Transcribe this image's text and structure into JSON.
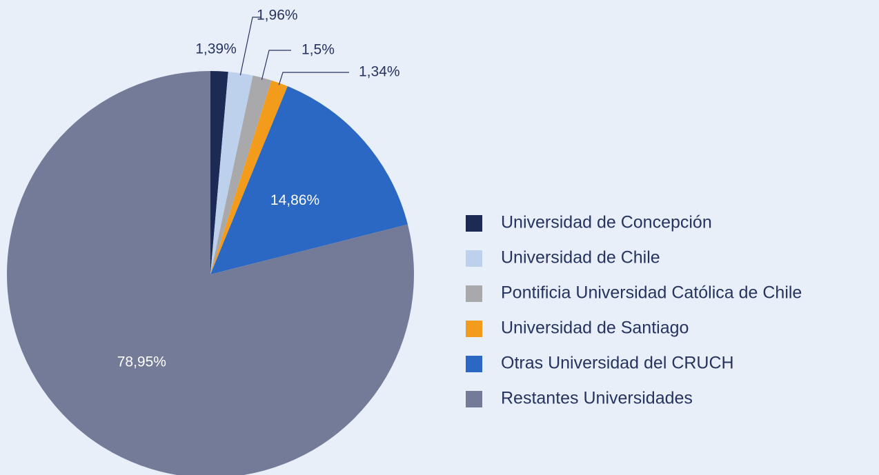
{
  "chart_data": {
    "type": "pie",
    "categories": [
      "Universidad de Concepción",
      "Universidad de Chile",
      "Pontificia Universidad Católica de Chile",
      "Universidad de Santiago",
      "Otras Universidad del CRUCH",
      "Restantes Universidades"
    ],
    "values": [
      1.39,
      1.96,
      1.5,
      1.34,
      14.86,
      78.95
    ],
    "value_labels": [
      "1,39%",
      "1,96%",
      "1,5%",
      "1,34%",
      "14,86%",
      "78,95%"
    ],
    "colors": [
      "#1b2b55",
      "#bed1ec",
      "#a9a9ab",
      "#f39c1b",
      "#2b68c3",
      "#737b98"
    ],
    "legend": "right"
  }
}
